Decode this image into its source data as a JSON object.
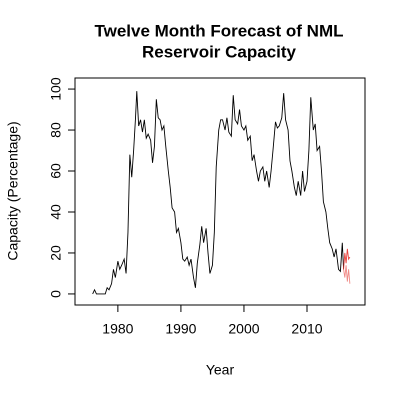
{
  "chart_data": {
    "type": "line",
    "title": [
      "Twelve Month Forecast of NML",
      "Reservoir Capacity"
    ],
    "xlabel": "Year",
    "ylabel": "Capacity (Percentage)",
    "xlim": [
      1973.2,
      2019.2
    ],
    "ylim": [
      -5.4,
      105.4
    ],
    "xticks": [
      1980,
      1990,
      2000,
      2010
    ],
    "yticks": [
      0,
      20,
      40,
      60,
      80,
      100
    ],
    "series": [
      {
        "color": "#000000",
        "x": [
          1976,
          1976.3,
          1976.6,
          1977,
          1978,
          1978.3,
          1978.6,
          1979,
          1979.3,
          1979.6,
          1980,
          1980.3,
          1980.6,
          1981,
          1981.3,
          1981.6,
          1981.9,
          1982.2,
          1982.5,
          1982.8,
          1983,
          1983.3,
          1983.6,
          1983.9,
          1984.2,
          1984.5,
          1984.8,
          1985.2,
          1985.5,
          1985.8,
          1986.1,
          1986.4,
          1986.7,
          1987,
          1987.3,
          1987.6,
          1988,
          1988.3,
          1988.6,
          1989,
          1989.3,
          1989.6,
          1990,
          1990.3,
          1990.6,
          1991,
          1991.3,
          1991.6,
          1992,
          1992.3,
          1992.6,
          1993,
          1993.3,
          1993.6,
          1994,
          1994.3,
          1994.6,
          1995,
          1995.3,
          1995.6,
          1996,
          1996.3,
          1996.6,
          1997,
          1997.3,
          1997.6,
          1998,
          1998.3,
          1998.6,
          1999,
          1999.3,
          1999.6,
          2000,
          2000.3,
          2000.6,
          2001,
          2001.3,
          2001.6,
          2002,
          2002.3,
          2002.6,
          2003,
          2003.3,
          2003.6,
          2004,
          2004.3,
          2004.6,
          2005,
          2005.3,
          2005.6,
          2006,
          2006.3,
          2006.6,
          2007,
          2007.3,
          2007.6,
          2008,
          2008.3,
          2008.6,
          2009,
          2009.3,
          2009.6,
          2010,
          2010.3,
          2010.6,
          2011,
          2011.3,
          2011.6,
          2012,
          2012.3,
          2012.6,
          2013,
          2013.3,
          2013.6,
          2014,
          2014.3,
          2014.6,
          2015,
          2015.3,
          2015.6,
          2015.8
        ],
        "values": [
          0,
          2,
          0,
          0,
          0,
          3,
          2,
          5,
          12,
          8,
          16,
          12,
          14,
          17,
          10,
          30,
          68,
          57,
          70,
          86,
          99,
          82,
          85,
          79,
          85,
          76,
          78,
          75,
          64,
          72,
          95,
          86,
          85,
          80,
          82,
          72,
          60,
          52,
          42,
          40,
          30,
          32,
          25,
          17,
          16,
          18,
          14,
          17,
          8,
          3,
          15,
          24,
          33,
          25,
          32,
          20,
          10,
          14,
          30,
          62,
          80,
          85,
          85,
          80,
          86,
          79,
          77,
          97,
          85,
          83,
          90,
          82,
          80,
          82,
          75,
          77,
          65,
          68,
          60,
          55,
          60,
          62,
          55,
          60,
          52,
          60,
          70,
          84,
          81,
          82,
          86,
          98,
          85,
          80,
          65,
          60,
          52,
          48,
          55,
          48,
          60,
          50,
          55,
          70,
          96,
          80,
          83,
          70,
          72,
          60,
          45,
          40,
          32,
          25,
          22,
          18,
          22,
          12,
          11,
          25,
          12
        ]
      },
      {
        "color": "#e8413c",
        "x": [
          2015.8,
          2016,
          2016.2,
          2016.4,
          2016.6,
          2016.8
        ],
        "values": [
          12,
          20,
          15,
          22,
          17,
          18
        ]
      },
      {
        "color": "#f08a86",
        "x": [
          2015.8,
          2016,
          2016.2,
          2016.4,
          2016.6,
          2016.8
        ],
        "values": [
          12,
          8,
          14,
          6,
          12,
          5
        ]
      }
    ]
  }
}
